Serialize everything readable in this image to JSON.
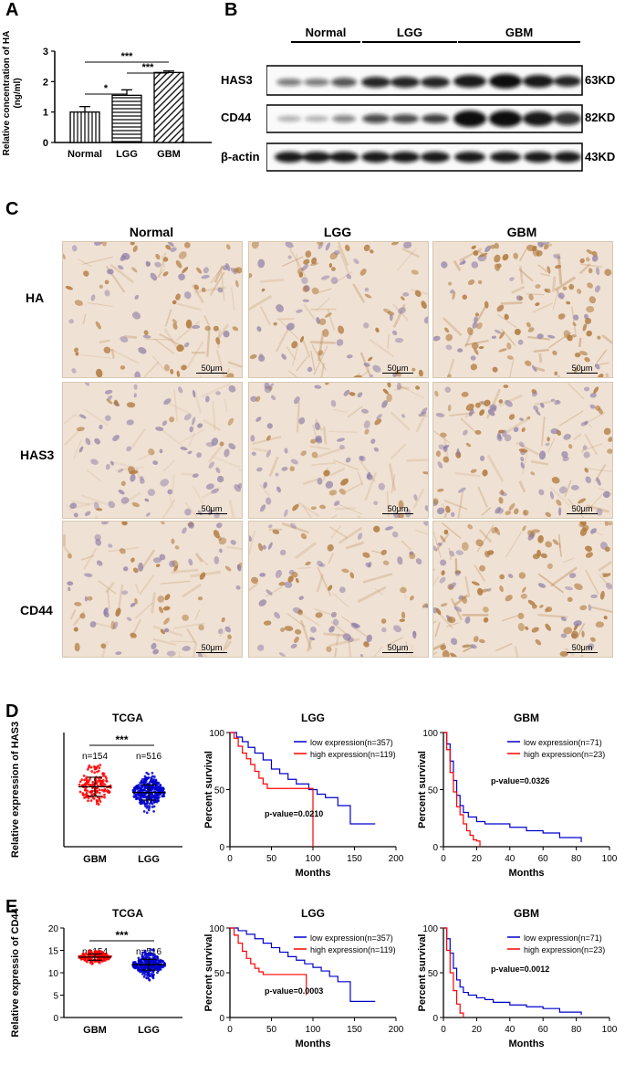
{
  "panels": {
    "A": "A",
    "B": "B",
    "C": "C",
    "D": "D",
    "E": "E"
  },
  "panelA": {
    "ylabel_line1": "Relative concentration of HA",
    "ylabel_line2": "(ng/ml)",
    "sig_top": "***",
    "sig_mid": "***",
    "sig_low": "*"
  },
  "panelB": {
    "groups": [
      "Normal",
      "LGG",
      "GBM"
    ],
    "rows": [
      {
        "label": "HAS3",
        "size": "63KD"
      },
      {
        "label": "CD44",
        "size": "82KD"
      },
      {
        "label": "β-actin",
        "size": "43KD"
      }
    ]
  },
  "panelC": {
    "columns": [
      "Normal",
      "LGG",
      "GBM"
    ],
    "rows": [
      "HA",
      "HAS3",
      "CD44"
    ],
    "scalebar": "50μm",
    "colors": {
      "tissue_bg": "#efe1d3",
      "stain_brown": "#b07a3e",
      "nuclei": "#8c7ca6"
    }
  },
  "chart_data": [
    {
      "type": "bar",
      "panel": "A",
      "categories": [
        "Normal",
        "LGG",
        "GBM"
      ],
      "values": [
        1.0,
        1.55,
        2.3
      ],
      "errors": [
        0.18,
        0.18,
        0.05
      ],
      "ylabel": "Relative concentration of HA (ng/ml)",
      "ylim": [
        0,
        3
      ],
      "yticks": [
        0,
        1,
        2,
        3
      ],
      "significance": [
        {
          "pair": [
            "Normal",
            "LGG"
          ],
          "label": "*"
        },
        {
          "pair": [
            "LGG",
            "GBM"
          ],
          "label": "***"
        },
        {
          "pair": [
            "Normal",
            "GBM"
          ],
          "label": "***"
        }
      ]
    },
    {
      "type": "scatter",
      "panel": "D-left",
      "title": "TCGA",
      "ylabel": "Relative expression of HAS3",
      "categories": [
        "GBM",
        "LGG"
      ],
      "n_labels": [
        "n=154",
        "n=516"
      ],
      "means": [
        6.3,
        5.7
      ],
      "sd": [
        1.0,
        0.8
      ],
      "spread": [
        [
          4.0,
          10.0
        ],
        [
          3.2,
          9.0
        ]
      ],
      "significance": "***",
      "colors": [
        "#ff0000",
        "#0000cc"
      ]
    },
    {
      "type": "line",
      "panel": "D-mid",
      "title": "LGG",
      "xlabel": "Months",
      "ylabel": "Percent survival",
      "xlim": [
        0,
        200
      ],
      "ylim": [
        0,
        100
      ],
      "xticks": [
        0,
        50,
        100,
        150,
        200
      ],
      "yticks": [
        0,
        50,
        100
      ],
      "annotation": "p-value=0.0210",
      "series": [
        {
          "name": "low  expression(n=357)",
          "color": "#0000cc",
          "x": [
            0,
            8,
            15,
            22,
            30,
            40,
            50,
            60,
            70,
            80,
            95,
            105,
            115,
            130,
            145,
            175
          ],
          "y": [
            100,
            96,
            92,
            87,
            82,
            76,
            68,
            64,
            59,
            55,
            50,
            46,
            43,
            36,
            20,
            20
          ]
        },
        {
          "name": "high expression(n=119)",
          "color": "#ff0000",
          "x": [
            0,
            5,
            10,
            15,
            20,
            25,
            30,
            35,
            40,
            45,
            60,
            75,
            90,
            100,
            100
          ],
          "y": [
            100,
            95,
            88,
            82,
            77,
            72,
            66,
            60,
            55,
            51,
            51,
            51,
            51,
            51,
            0
          ]
        }
      ]
    },
    {
      "type": "line",
      "panel": "D-right",
      "title": "GBM",
      "xlabel": "Months",
      "ylabel": "Percent survival",
      "xlim": [
        0,
        100
      ],
      "ylim": [
        0,
        100
      ],
      "xticks": [
        0,
        20,
        40,
        60,
        80,
        100
      ],
      "yticks": [
        0,
        50,
        100
      ],
      "annotation": "p-value=0.0326",
      "series": [
        {
          "name": "low  expression(n=71)",
          "color": "#0000cc",
          "x": [
            0,
            2,
            4,
            6,
            8,
            10,
            12,
            15,
            20,
            25,
            30,
            40,
            50,
            60,
            70,
            83
          ],
          "y": [
            100,
            90,
            75,
            58,
            45,
            36,
            30,
            26,
            22,
            20,
            20,
            17,
            14,
            12,
            8,
            4
          ]
        },
        {
          "name": "high expression(n=23)",
          "color": "#ff0000",
          "x": [
            0,
            2,
            4,
            6,
            8,
            10,
            12,
            14,
            16,
            18,
            20,
            22
          ],
          "y": [
            100,
            85,
            65,
            48,
            35,
            28,
            20,
            14,
            10,
            6,
            5,
            0
          ]
        }
      ]
    },
    {
      "type": "scatter",
      "panel": "E-left",
      "title": "TCGA",
      "ylabel": "Relative expressio of CD44",
      "categories": [
        "GBM",
        "LGG"
      ],
      "n_labels": [
        "n=154",
        "n=516"
      ],
      "ylim": [
        0,
        20
      ],
      "yticks": [
        0,
        5,
        10,
        15,
        20
      ],
      "means": [
        13.5,
        11.8
      ],
      "sd": [
        0.7,
        1.2
      ],
      "spread": [
        [
          9.5,
          15.8
        ],
        [
          6.3,
          16.0
        ]
      ],
      "significance": "***",
      "colors": [
        "#ff0000",
        "#0000cc"
      ]
    },
    {
      "type": "line",
      "panel": "E-mid",
      "title": "LGG",
      "xlabel": "Months",
      "ylabel": "Percent survival",
      "xlim": [
        0,
        200
      ],
      "ylim": [
        0,
        100
      ],
      "xticks": [
        0,
        50,
        100,
        150,
        200
      ],
      "yticks": [
        0,
        50,
        100
      ],
      "annotation": "p-value=0.0003",
      "series": [
        {
          "name": "low  expression(n=357)",
          "color": "#0000cc",
          "x": [
            0,
            10,
            20,
            30,
            40,
            50,
            60,
            70,
            80,
            90,
            100,
            110,
            120,
            130,
            145,
            175
          ],
          "y": [
            100,
            97,
            93,
            88,
            83,
            78,
            73,
            68,
            64,
            60,
            56,
            52,
            46,
            40,
            18,
            18
          ]
        },
        {
          "name": "high expression(n=119)",
          "color": "#ff0000",
          "x": [
            0,
            5,
            10,
            15,
            20,
            25,
            30,
            35,
            40,
            50,
            60,
            75,
            92,
            92
          ],
          "y": [
            100,
            92,
            83,
            74,
            66,
            60,
            55,
            51,
            48,
            48,
            48,
            48,
            48,
            25
          ]
        }
      ]
    },
    {
      "type": "line",
      "panel": "E-right",
      "title": "GBM",
      "xlabel": "Months",
      "ylabel": "Percent survival",
      "xlim": [
        0,
        100
      ],
      "ylim": [
        0,
        100
      ],
      "xticks": [
        0,
        20,
        40,
        60,
        80,
        100
      ],
      "yticks": [
        0,
        50,
        100
      ],
      "annotation": "p-value=0.0012",
      "series": [
        {
          "name": "low  expression(n=71)",
          "color": "#0000cc",
          "x": [
            0,
            2,
            4,
            6,
            8,
            10,
            12,
            15,
            20,
            25,
            30,
            40,
            50,
            60,
            70,
            83
          ],
          "y": [
            100,
            88,
            72,
            55,
            42,
            34,
            28,
            25,
            22,
            20,
            17,
            14,
            12,
            10,
            6,
            3
          ]
        },
        {
          "name": "high expression(n=23)",
          "color": "#ff0000",
          "x": [
            0,
            2,
            4,
            6,
            8,
            10,
            12
          ],
          "y": [
            100,
            75,
            50,
            30,
            15,
            5,
            0
          ]
        }
      ]
    }
  ]
}
